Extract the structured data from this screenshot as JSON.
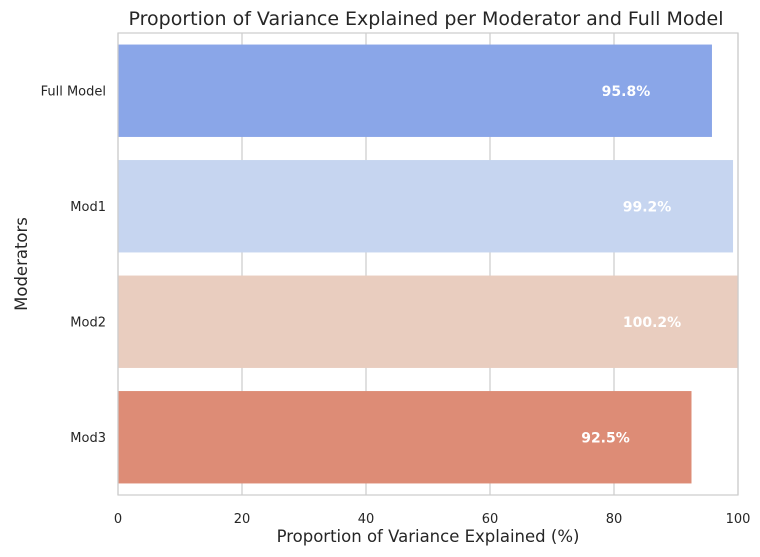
{
  "chart_data": {
    "type": "bar",
    "orientation": "horizontal",
    "title": "Proportion of Variance Explained per Moderator and Full Model",
    "xlabel": "Proportion of Variance Explained (%)",
    "ylabel": "Moderators",
    "xlim": [
      0,
      100
    ],
    "xticks": [
      "0",
      "20",
      "40",
      "60",
      "80",
      "100"
    ],
    "grid": "vertical",
    "categories": [
      "Full Model",
      "Mod1",
      "Mod2",
      "Mod3"
    ],
    "values": [
      95.8,
      99.2,
      100.2,
      92.5
    ],
    "data_labels": [
      "95.8%",
      "99.2%",
      "100.2%",
      "92.5%"
    ],
    "colors": [
      "#8aa6e8",
      "#c6d5f0",
      "#e9cdbf",
      "#dd8c76"
    ]
  }
}
